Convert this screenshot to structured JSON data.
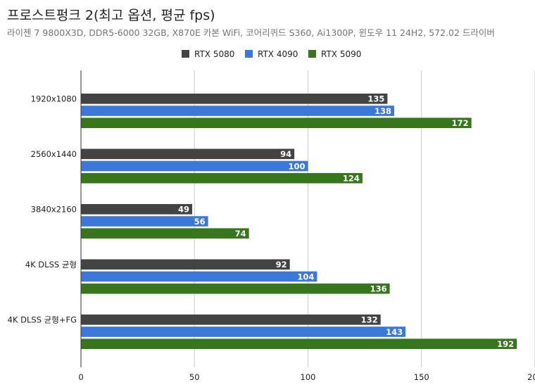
{
  "chart_data": {
    "type": "bar",
    "orientation": "horizontal",
    "title": "프로스트펑크 2(최고 옵션, 평균 fps)",
    "subtitle": "라이젠 7 9800X3D, DDR5-6000 32GB, X870E 카본 WiFi, 코어리퀴드 S360, Ai1300P, 윈도우 11 24H2, 572.02 드라이버",
    "categories": [
      "1920x1080",
      "2560x1440",
      "3840x2160",
      "4K DLSS 균형",
      "4K DLSS 균형+FG"
    ],
    "series": [
      {
        "name": "RTX 5080",
        "color": "#434343",
        "values": [
          135,
          94,
          49,
          92,
          132
        ]
      },
      {
        "name": "RTX 4090",
        "color": "#3c78d8",
        "values": [
          138,
          100,
          56,
          104,
          143
        ]
      },
      {
        "name": "RTX 5090",
        "color": "#38761d",
        "values": [
          172,
          124,
          74,
          136,
          192
        ]
      }
    ],
    "xlim": [
      0,
      200
    ],
    "x_ticks": [
      "0",
      "50",
      "100",
      "150",
      "200"
    ],
    "grid": true,
    "legend_position": "top",
    "data_labels": true
  }
}
